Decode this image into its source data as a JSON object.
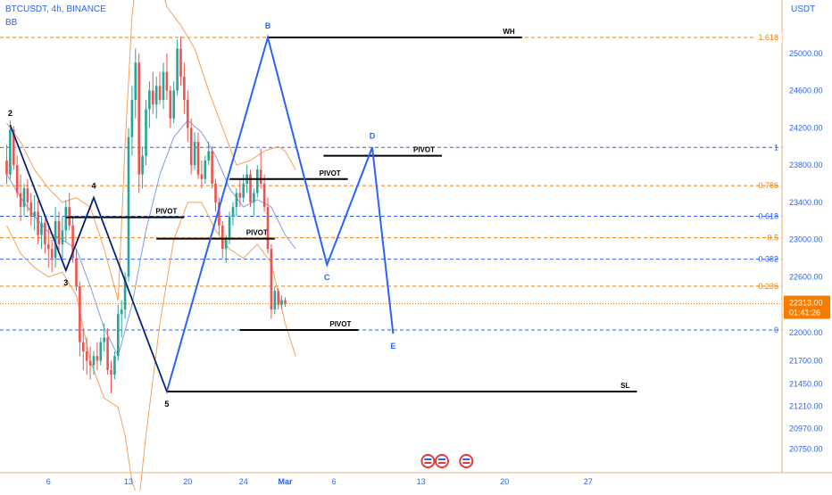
{
  "header": {
    "symbol_line": "BTCUSDT, 4h, BINANCE",
    "indicator": "BB",
    "currency": "USDT"
  },
  "colors": {
    "up": "#26a69a",
    "down": "#ef5350",
    "wave": "#2962ff",
    "fib_orange": "#f57c00",
    "fib_blue": "#2962ff",
    "band": "#f5a05a",
    "basis": "#7e9ce8",
    "price_tag_bg": "#f57c00"
  },
  "price_tag": {
    "price": "22313.00",
    "countdown": "01:41:26"
  },
  "chart_data": {
    "type": "candlestick",
    "symbol": "BTCUSDT",
    "interval": "4h",
    "exchange": "BINANCE",
    "ylim": [
      20600,
      26050
    ],
    "y_ticks": [
      25000,
      24600,
      24200,
      23800,
      23400,
      23000,
      22600,
      22313,
      22000,
      21700,
      21450,
      21210,
      20970,
      20750
    ],
    "y_tick_labels": [
      "25000.00",
      "24600.00",
      "24200.00",
      "23800.00",
      "23400.00",
      "23000.00",
      "22600.00",
      "22313.00",
      "22000.00",
      "21700.00",
      "21450.00",
      "21210.00",
      "20970.00",
      "20750.00"
    ],
    "x_ticks": [
      "6",
      "13",
      "20",
      "24",
      "Mar",
      "6",
      "13",
      "20",
      "27"
    ],
    "x_tick_index": [
      12,
      35,
      52,
      68,
      80,
      94,
      119,
      143,
      167
    ],
    "current_price": 22313,
    "candles": [
      [
        23850,
        24020,
        23600,
        23700
      ],
      [
        23700,
        24280,
        23650,
        24180
      ],
      [
        24180,
        24220,
        23750,
        23800
      ],
      [
        23800,
        23900,
        23450,
        23500
      ],
      [
        23500,
        23700,
        23200,
        23350
      ],
      [
        23350,
        23600,
        23250,
        23550
      ],
      [
        23550,
        23650,
        23300,
        23400
      ],
      [
        23400,
        23500,
        23150,
        23250
      ],
      [
        23250,
        23480,
        23100,
        23300
      ],
      [
        23300,
        23420,
        22950,
        23050
      ],
      [
        23050,
        23250,
        22900,
        23180
      ],
      [
        23180,
        23220,
        22850,
        22950
      ],
      [
        22950,
        23180,
        22700,
        22900
      ],
      [
        22900,
        23000,
        22650,
        22800
      ],
      [
        22800,
        23350,
        22700,
        23200
      ],
      [
        23200,
        23300,
        22880,
        22950
      ],
      [
        22950,
        23250,
        22800,
        23100
      ],
      [
        23100,
        23420,
        22980,
        23350
      ],
      [
        23350,
        23500,
        23100,
        23150
      ],
      [
        23150,
        23250,
        22750,
        22800
      ],
      [
        22800,
        22900,
        22450,
        22500
      ],
      [
        22500,
        22550,
        21750,
        21900
      ],
      [
        21900,
        22050,
        21600,
        21800
      ],
      [
        21800,
        21950,
        21550,
        21700
      ],
      [
        21700,
        21850,
        21500,
        21650
      ],
      [
        21650,
        21800,
        21550,
        21750
      ],
      [
        21750,
        21900,
        21600,
        21700
      ],
      [
        21700,
        21950,
        21650,
        21900
      ],
      [
        21900,
        22100,
        21800,
        21950
      ],
      [
        21950,
        22050,
        21550,
        21600
      ],
      [
        21600,
        21700,
        21350,
        21550
      ],
      [
        21550,
        21800,
        21500,
        21750
      ],
      [
        21750,
        22300,
        21700,
        22200
      ],
      [
        22200,
        22350,
        21950,
        22250
      ],
      [
        22250,
        22650,
        22150,
        22600
      ],
      [
        22600,
        24200,
        22550,
        24100
      ],
      [
        24100,
        24650,
        23900,
        24500
      ],
      [
        24500,
        25050,
        24300,
        24900
      ],
      [
        24900,
        25000,
        23500,
        23700
      ],
      [
        23700,
        24000,
        23550,
        23900
      ],
      [
        23900,
        24500,
        23800,
        24400
      ],
      [
        24400,
        24700,
        24200,
        24600
      ],
      [
        24600,
        24800,
        24350,
        24450
      ],
      [
        24450,
        24750,
        24300,
        24650
      ],
      [
        24650,
        24800,
        24450,
        24500
      ],
      [
        24500,
        24900,
        24400,
        24800
      ],
      [
        24800,
        25000,
        24500,
        24600
      ],
      [
        24600,
        24650,
        24200,
        24300
      ],
      [
        24300,
        24700,
        24250,
        24600
      ],
      [
        24600,
        25150,
        24550,
        25050
      ],
      [
        25050,
        25180,
        24650,
        24750
      ],
      [
        24750,
        24900,
        24350,
        24500
      ],
      [
        24500,
        24600,
        24050,
        24200
      ],
      [
        24200,
        24300,
        23700,
        23800
      ],
      [
        23800,
        24150,
        23750,
        24050
      ],
      [
        24050,
        24150,
        23650,
        23700
      ],
      [
        23700,
        23850,
        23550,
        23650
      ],
      [
        23650,
        23900,
        23600,
        23850
      ],
      [
        23850,
        24050,
        23800,
        23950
      ],
      [
        23950,
        24000,
        23550,
        23600
      ],
      [
        23600,
        23650,
        23300,
        23400
      ],
      [
        23400,
        23450,
        23050,
        23150
      ],
      [
        23150,
        23200,
        22800,
        22900
      ],
      [
        22900,
        23050,
        22750,
        23000
      ],
      [
        23000,
        23300,
        22950,
        23250
      ],
      [
        23250,
        23400,
        23150,
        23350
      ],
      [
        23350,
        23550,
        23250,
        23500
      ],
      [
        23500,
        23650,
        23350,
        23450
      ],
      [
        23450,
        23700,
        23400,
        23600
      ],
      [
        23600,
        23800,
        23500,
        23700
      ],
      [
        23700,
        23750,
        23350,
        23400
      ],
      [
        23400,
        23550,
        23250,
        23500
      ],
      [
        23500,
        23800,
        23450,
        23750
      ],
      [
        23750,
        23980,
        23550,
        23600
      ],
      [
        23600,
        23700,
        23300,
        23350
      ],
      [
        23350,
        23450,
        22850,
        22900
      ],
      [
        22900,
        22950,
        22150,
        22250
      ],
      [
        22250,
        22500,
        22200,
        22450
      ],
      [
        22450,
        22480,
        22250,
        22300
      ],
      [
        22300,
        22400,
        22250,
        22350
      ],
      [
        22350,
        22380,
        22280,
        22313
      ]
    ],
    "bollinger": {
      "basis": [
        [
          0,
          23700
        ],
        [
          4,
          23450
        ],
        [
          8,
          23250
        ],
        [
          12,
          23080
        ],
        [
          16,
          23000
        ],
        [
          20,
          22900
        ],
        [
          24,
          22500
        ],
        [
          28,
          22050
        ],
        [
          32,
          21750
        ],
        [
          36,
          22300
        ],
        [
          40,
          23100
        ],
        [
          44,
          23700
        ],
        [
          48,
          24100
        ],
        [
          52,
          24280
        ],
        [
          56,
          24150
        ],
        [
          60,
          23900
        ],
        [
          64,
          23550
        ],
        [
          68,
          23350
        ],
        [
          72,
          23430
        ],
        [
          76,
          23350
        ],
        [
          80,
          23050
        ],
        [
          83,
          22900
        ]
      ],
      "upper": [
        [
          0,
          24250
        ],
        [
          4,
          24050
        ],
        [
          8,
          23750
        ],
        [
          12,
          23550
        ],
        [
          16,
          23400
        ],
        [
          20,
          23450
        ],
        [
          24,
          23350
        ],
        [
          28,
          22900
        ],
        [
          32,
          22350
        ],
        [
          34,
          24000
        ],
        [
          36,
          25400
        ],
        [
          38,
          26050
        ],
        [
          42,
          26050
        ],
        [
          46,
          25500
        ],
        [
          50,
          25300
        ],
        [
          54,
          25050
        ],
        [
          58,
          24600
        ],
        [
          62,
          24200
        ],
        [
          66,
          23800
        ],
        [
          70,
          23850
        ],
        [
          74,
          23950
        ],
        [
          78,
          24000
        ],
        [
          80,
          23950
        ],
        [
          83,
          23750
        ]
      ],
      "lower": [
        [
          0,
          23150
        ],
        [
          4,
          22850
        ],
        [
          8,
          22700
        ],
        [
          12,
          22600
        ],
        [
          16,
          22650
        ],
        [
          20,
          22400
        ],
        [
          24,
          21700
        ],
        [
          28,
          21300
        ],
        [
          32,
          21200
        ],
        [
          34,
          20900
        ],
        [
          36,
          20400
        ],
        [
          38,
          20200
        ],
        [
          40,
          20900
        ],
        [
          44,
          22100
        ],
        [
          48,
          23000
        ],
        [
          52,
          23400
        ],
        [
          56,
          23400
        ],
        [
          60,
          23100
        ],
        [
          64,
          22900
        ],
        [
          68,
          22800
        ],
        [
          72,
          22950
        ],
        [
          76,
          22750
        ],
        [
          80,
          22100
        ],
        [
          83,
          21750
        ]
      ]
    },
    "wave_points": [
      {
        "label": "2",
        "i": 1,
        "price": 24230
      },
      {
        "label": "3",
        "i": 17,
        "price": 22670
      },
      {
        "label": "4",
        "i": 25,
        "price": 23450
      },
      {
        "label": "5",
        "i": 46,
        "price": 21370
      },
      {
        "label": "B",
        "i": 75,
        "price": 25170
      },
      {
        "label": "C",
        "i": 92,
        "price": 22730
      },
      {
        "label": "D",
        "i": 105,
        "price": 23990
      },
      {
        "label": "E",
        "i": 111,
        "price": 21990
      }
    ],
    "pivot_lines": [
      {
        "label": "PIVOT",
        "i0": 17,
        "i1": 51,
        "price": 23240
      },
      {
        "label": "PIVOT",
        "i0": 43,
        "i1": 77,
        "price": 23010
      },
      {
        "label": "PIVOT",
        "i0": 64,
        "i1": 98,
        "price": 23650
      },
      {
        "label": "PIVOT",
        "i0": 91,
        "i1": 125,
        "price": 23900
      },
      {
        "label": "PIVOT",
        "i0": 67,
        "i1": 101,
        "price": 22030
      },
      {
        "label": "WH",
        "i0": 75,
        "i1": 148,
        "price": 25170
      },
      {
        "label": "SL",
        "i0": 46,
        "i1": 181,
        "price": 21370
      }
    ],
    "fib_levels": [
      {
        "label": "1.618",
        "price": 25170,
        "color": "orange"
      },
      {
        "label": "1",
        "price": 23990,
        "color": "blue"
      },
      {
        "label": "0.786",
        "price": 23580,
        "color": "orange"
      },
      {
        "label": "0.618",
        "price": 23250,
        "color": "blue"
      },
      {
        "label": "0.5",
        "price": 23020,
        "color": "orange"
      },
      {
        "label": "0.382",
        "price": 22790,
        "color": "blue"
      },
      {
        "label": "0.236",
        "price": 22500,
        "color": "orange"
      },
      {
        "label": "0",
        "price": 22030,
        "color": "blue"
      }
    ],
    "grid": false,
    "legend": "none"
  }
}
